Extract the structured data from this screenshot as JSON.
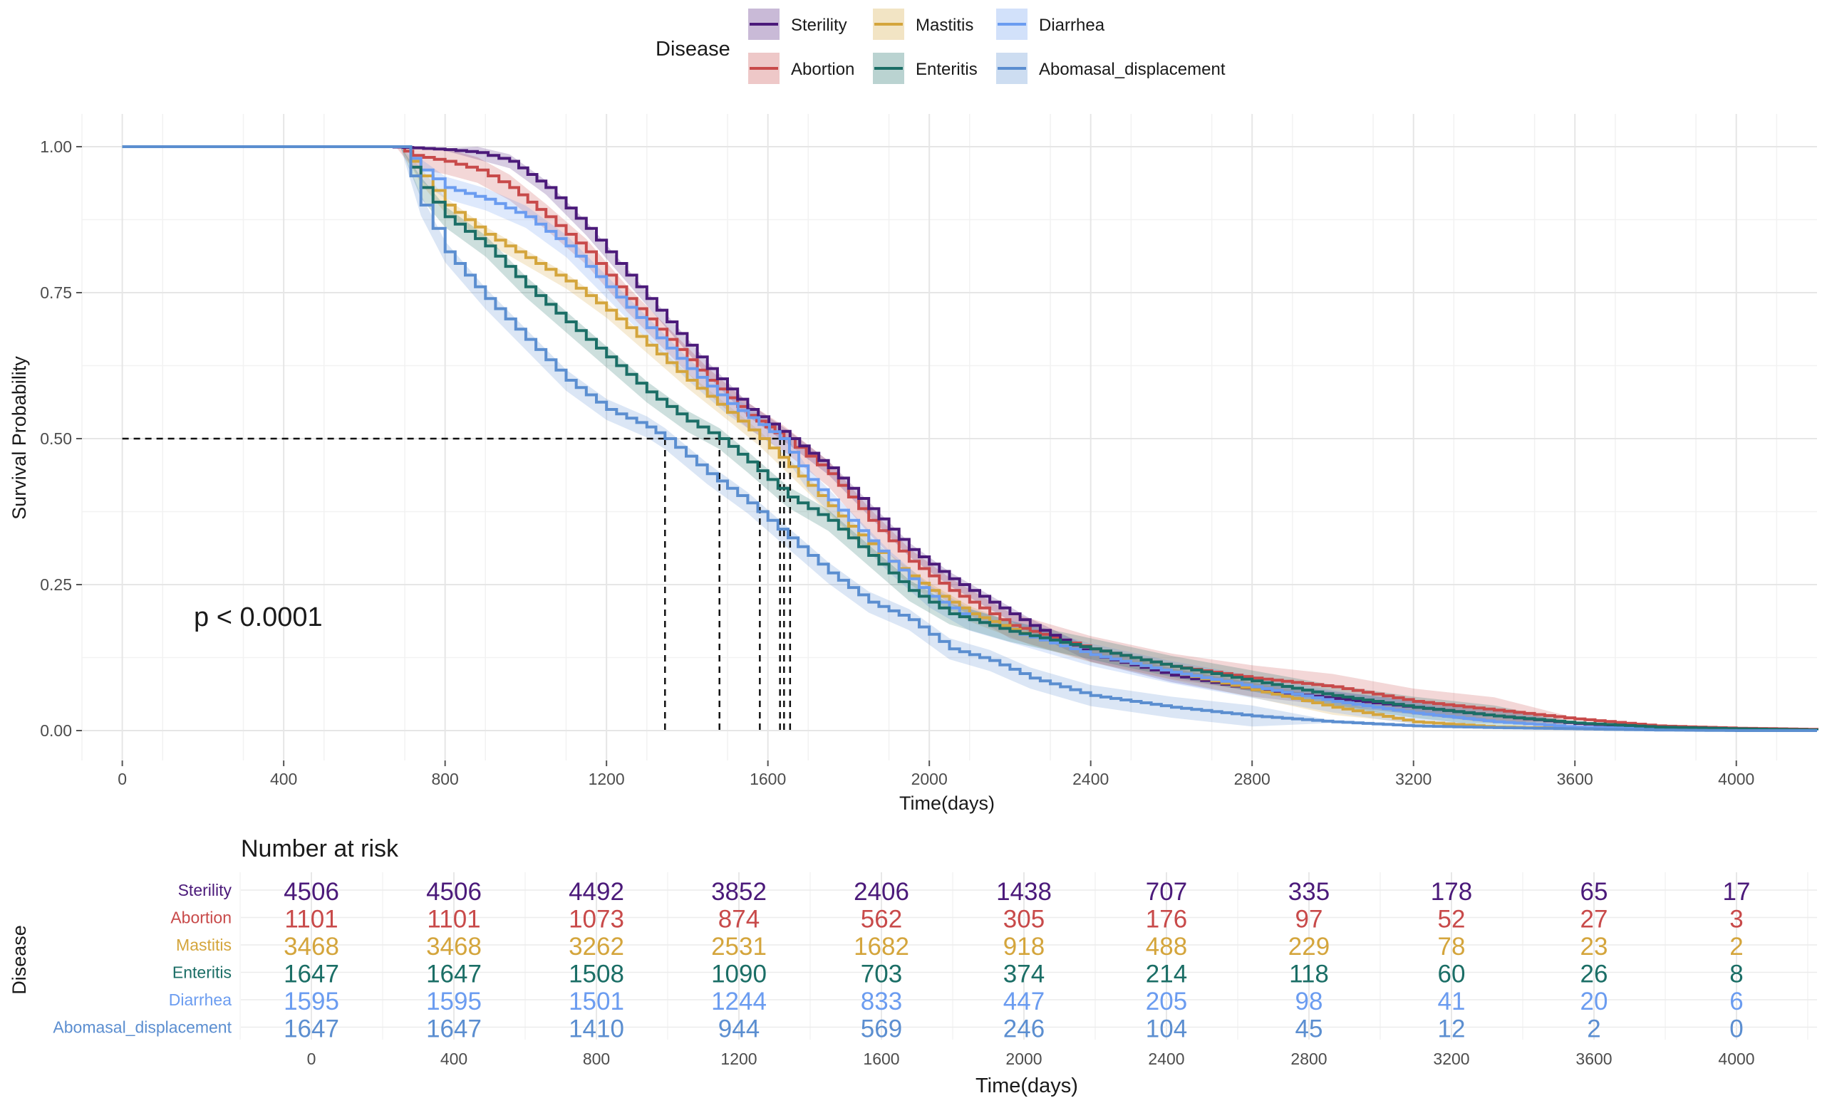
{
  "colors": {
    "Sterility": "#4b1a7a",
    "Abortion": "#c84a4a",
    "Mastitis": "#d4a53c",
    "Enteritis": "#1b6e66",
    "Diarrhea": "#6b9cf0",
    "Abomasal_displacement": "#5b8ed0"
  },
  "legend": {
    "title": "Disease",
    "items": [
      "Sterility",
      "Mastitis",
      "Diarrhea",
      "Abortion",
      "Enteritis",
      "Abomasal_displacement"
    ]
  },
  "annotation": "p < 0.0001",
  "risk_table": {
    "title": "Number at risk",
    "ylabel": "Disease",
    "xlabel": "Time(days)"
  },
  "chart_data": {
    "type": "line",
    "subtype": "kaplan-meier",
    "xlabel": "Time(days)",
    "ylabel": "Survival Probability",
    "xlim": [
      -100,
      4200
    ],
    "ylim": [
      0,
      1
    ],
    "xticks": [
      0,
      400,
      800,
      1200,
      1600,
      2000,
      2400,
      2800,
      3200,
      3600,
      4000
    ],
    "yticks": [
      0,
      0.25,
      0.5,
      0.75,
      1.0
    ],
    "ytick_labels": [
      "0.00",
      "0.25",
      "0.50",
      "0.75",
      "1.00"
    ],
    "median_survival": {
      "Abomasal_displacement": 1345,
      "Enteritis": 1480,
      "Mastitis": 1580,
      "Diarrhea": 1630,
      "Abortion": 1640,
      "Sterility": 1655
    },
    "series": [
      {
        "name": "Sterility",
        "points": [
          [
            0,
            1
          ],
          [
            570,
            1
          ],
          [
            650,
            1
          ],
          [
            720,
            0.998
          ],
          [
            800,
            0.995
          ],
          [
            880,
            0.99
          ],
          [
            960,
            0.975
          ],
          [
            1050,
            0.93
          ],
          [
            1150,
            0.86
          ],
          [
            1250,
            0.78
          ],
          [
            1350,
            0.7
          ],
          [
            1450,
            0.62
          ],
          [
            1550,
            0.55
          ],
          [
            1655,
            0.5
          ],
          [
            1750,
            0.45
          ],
          [
            1850,
            0.38
          ],
          [
            1950,
            0.31
          ],
          [
            2050,
            0.26
          ],
          [
            2150,
            0.22
          ],
          [
            2250,
            0.18
          ],
          [
            2400,
            0.13
          ],
          [
            2600,
            0.095
          ],
          [
            2800,
            0.07
          ],
          [
            3000,
            0.055
          ],
          [
            3200,
            0.04
          ],
          [
            3400,
            0.025
          ],
          [
            3600,
            0.012
          ],
          [
            3800,
            0.005
          ],
          [
            4000,
            0.002
          ],
          [
            4200,
            0.001
          ]
        ]
      },
      {
        "name": "Abortion",
        "points": [
          [
            0,
            1
          ],
          [
            600,
            1
          ],
          [
            680,
            1
          ],
          [
            720,
            0.985
          ],
          [
            800,
            0.975
          ],
          [
            880,
            0.96
          ],
          [
            960,
            0.93
          ],
          [
            1050,
            0.88
          ],
          [
            1150,
            0.82
          ],
          [
            1250,
            0.74
          ],
          [
            1350,
            0.67
          ],
          [
            1450,
            0.6
          ],
          [
            1550,
            0.54
          ],
          [
            1640,
            0.5
          ],
          [
            1750,
            0.44
          ],
          [
            1850,
            0.36
          ],
          [
            1950,
            0.29
          ],
          [
            2050,
            0.24
          ],
          [
            2200,
            0.18
          ],
          [
            2400,
            0.14
          ],
          [
            2600,
            0.11
          ],
          [
            2800,
            0.09
          ],
          [
            3000,
            0.075
          ],
          [
            3200,
            0.05
          ],
          [
            3400,
            0.035
          ],
          [
            3600,
            0.02
          ],
          [
            3800,
            0.008
          ],
          [
            4000,
            0.004
          ],
          [
            4200,
            0.002
          ]
        ]
      },
      {
        "name": "Mastitis",
        "points": [
          [
            0,
            1
          ],
          [
            600,
            1
          ],
          [
            690,
            1
          ],
          [
            740,
            0.95
          ],
          [
            800,
            0.9
          ],
          [
            900,
            0.85
          ],
          [
            1000,
            0.81
          ],
          [
            1100,
            0.77
          ],
          [
            1200,
            0.72
          ],
          [
            1300,
            0.66
          ],
          [
            1400,
            0.6
          ],
          [
            1500,
            0.545
          ],
          [
            1580,
            0.5
          ],
          [
            1700,
            0.42
          ],
          [
            1800,
            0.35
          ],
          [
            1900,
            0.29
          ],
          [
            2000,
            0.24
          ],
          [
            2100,
            0.2
          ],
          [
            2250,
            0.16
          ],
          [
            2400,
            0.13
          ],
          [
            2600,
            0.1
          ],
          [
            2800,
            0.07
          ],
          [
            3000,
            0.04
          ],
          [
            3200,
            0.015
          ],
          [
            3400,
            0.006
          ],
          [
            3600,
            0.004
          ],
          [
            3800,
            0.003
          ],
          [
            4000,
            0.002
          ],
          [
            4200,
            0.001
          ]
        ]
      },
      {
        "name": "Enteritis",
        "points": [
          [
            0,
            1
          ],
          [
            600,
            1
          ],
          [
            690,
            1
          ],
          [
            740,
            0.93
          ],
          [
            800,
            0.88
          ],
          [
            900,
            0.83
          ],
          [
            1000,
            0.76
          ],
          [
            1100,
            0.7
          ],
          [
            1200,
            0.64
          ],
          [
            1300,
            0.58
          ],
          [
            1400,
            0.53
          ],
          [
            1480,
            0.5
          ],
          [
            1550,
            0.46
          ],
          [
            1650,
            0.4
          ],
          [
            1750,
            0.36
          ],
          [
            1850,
            0.3
          ],
          [
            1950,
            0.24
          ],
          [
            2050,
            0.2
          ],
          [
            2200,
            0.17
          ],
          [
            2400,
            0.14
          ],
          [
            2600,
            0.11
          ],
          [
            2800,
            0.085
          ],
          [
            3000,
            0.06
          ],
          [
            3200,
            0.04
          ],
          [
            3400,
            0.025
          ],
          [
            3600,
            0.013
          ],
          [
            3800,
            0.006
          ],
          [
            4000,
            0.003
          ],
          [
            4200,
            0.001
          ]
        ]
      },
      {
        "name": "Diarrhea",
        "points": [
          [
            0,
            1
          ],
          [
            600,
            1
          ],
          [
            690,
            1
          ],
          [
            740,
            0.96
          ],
          [
            800,
            0.93
          ],
          [
            900,
            0.91
          ],
          [
            1000,
            0.88
          ],
          [
            1100,
            0.83
          ],
          [
            1200,
            0.76
          ],
          [
            1300,
            0.69
          ],
          [
            1400,
            0.62
          ],
          [
            1500,
            0.56
          ],
          [
            1630,
            0.5
          ],
          [
            1700,
            0.43
          ],
          [
            1800,
            0.36
          ],
          [
            1900,
            0.29
          ],
          [
            2000,
            0.23
          ],
          [
            2100,
            0.19
          ],
          [
            2250,
            0.16
          ],
          [
            2400,
            0.13
          ],
          [
            2600,
            0.1
          ],
          [
            2800,
            0.075
          ],
          [
            3000,
            0.05
          ],
          [
            3200,
            0.03
          ],
          [
            3400,
            0.015
          ],
          [
            3600,
            0.006
          ],
          [
            3800,
            0.003
          ],
          [
            4000,
            0.001
          ],
          [
            4200,
            0
          ]
        ]
      },
      {
        "name": "Abomasal_displacement",
        "points": [
          [
            0,
            1
          ],
          [
            600,
            1
          ],
          [
            690,
            1
          ],
          [
            740,
            0.9
          ],
          [
            800,
            0.82
          ],
          [
            900,
            0.74
          ],
          [
            1000,
            0.67
          ],
          [
            1100,
            0.6
          ],
          [
            1200,
            0.55
          ],
          [
            1300,
            0.52
          ],
          [
            1345,
            0.5
          ],
          [
            1450,
            0.44
          ],
          [
            1550,
            0.39
          ],
          [
            1650,
            0.33
          ],
          [
            1750,
            0.27
          ],
          [
            1850,
            0.22
          ],
          [
            1950,
            0.19
          ],
          [
            2050,
            0.14
          ],
          [
            2150,
            0.12
          ],
          [
            2250,
            0.09
          ],
          [
            2400,
            0.06
          ],
          [
            2600,
            0.04
          ],
          [
            2800,
            0.025
          ],
          [
            3000,
            0.015
          ],
          [
            3200,
            0.008
          ],
          [
            3400,
            0.005
          ],
          [
            3600,
            0.003
          ],
          [
            3800,
            0.001
          ],
          [
            4000,
            0
          ],
          [
            4200,
            0
          ]
        ]
      }
    ],
    "risk_table": {
      "times": [
        0,
        400,
        800,
        1200,
        1600,
        2000,
        2400,
        2800,
        3200,
        3600,
        4000
      ],
      "rows": [
        {
          "name": "Sterility",
          "values": [
            4506,
            4506,
            4492,
            3852,
            2406,
            1438,
            707,
            335,
            178,
            65,
            17
          ]
        },
        {
          "name": "Abortion",
          "values": [
            1101,
            1101,
            1073,
            874,
            562,
            305,
            176,
            97,
            52,
            27,
            3
          ]
        },
        {
          "name": "Mastitis",
          "values": [
            3468,
            3468,
            3262,
            2531,
            1682,
            918,
            488,
            229,
            78,
            23,
            2
          ]
        },
        {
          "name": "Enteritis",
          "values": [
            1647,
            1647,
            1508,
            1090,
            703,
            374,
            214,
            118,
            60,
            26,
            8
          ]
        },
        {
          "name": "Diarrhea",
          "values": [
            1595,
            1595,
            1501,
            1244,
            833,
            447,
            205,
            98,
            41,
            20,
            6
          ]
        },
        {
          "name": "Abomasal_displacement",
          "values": [
            1647,
            1647,
            1410,
            944,
            569,
            246,
            104,
            45,
            12,
            2,
            0
          ]
        }
      ]
    }
  }
}
